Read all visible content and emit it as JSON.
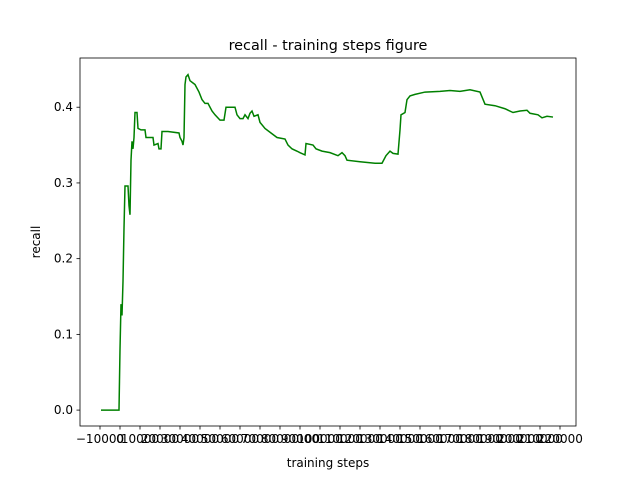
{
  "chart_data": {
    "type": "line",
    "title": "recall - training steps figure",
    "xlabel": "training steps",
    "ylabel": "recall",
    "xlim": [
      -20000,
      228000
    ],
    "ylim": [
      -0.021,
      0.465
    ],
    "xticks": [
      {
        "value": -10000,
        "label": "−10000"
      },
      0,
      10000,
      20000,
      30000,
      40000,
      50000,
      60000,
      70000,
      80000,
      90000,
      100000,
      110000,
      120000,
      130000,
      140000,
      150000,
      160000,
      170000,
      180000,
      190000,
      200000,
      210000,
      220000
    ],
    "yticks": [
      {
        "value": 0,
        "label": "0.0"
      },
      0.1,
      0.2,
      0.3,
      0.4
    ],
    "series": [
      {
        "color": "#008000",
        "x": [
          -9500,
          -500,
          0,
          500,
          1000,
          1500,
          2000,
          2500,
          4000,
          4500,
          5000,
          5500,
          6000,
          6500,
          7000,
          7500,
          8500,
          9000,
          10500,
          12500,
          13000,
          16500,
          17000,
          19000,
          19500,
          20500,
          21000,
          24000,
          29500,
          30000,
          31000,
          31500,
          32000,
          32500,
          33000,
          34000,
          35000,
          36500,
          37500,
          39500,
          41000,
          42500,
          44000,
          46000,
          47500,
          50000,
          52000,
          53000,
          57500,
          58500,
          60000,
          61500,
          62500,
          64000,
          65000,
          66000,
          67000,
          69000,
          70000,
          72500,
          76000,
          78500,
          82500,
          84000,
          86000,
          88500,
          90000,
          92500,
          93000,
          96500,
          98000,
          101000,
          105000,
          109000,
          111000,
          112500,
          113500,
          120000,
          127500,
          131000,
          133000,
          135000,
          136500,
          139000,
          140000,
          140500,
          142500,
          143500,
          145000,
          147500,
          152500,
          160000,
          165000,
          170000,
          175000,
          180000,
          182500,
          187500,
          192500,
          196500,
          200000,
          203500,
          205000,
          209000,
          211000,
          213500,
          216500
        ],
        "values": [
          0,
          0,
          0.08,
          0.14,
          0.125,
          0.17,
          0.24,
          0.296,
          0.296,
          0.27,
          0.258,
          0.33,
          0.355,
          0.345,
          0.36,
          0.393,
          0.393,
          0.372,
          0.37,
          0.37,
          0.36,
          0.36,
          0.35,
          0.352,
          0.345,
          0.345,
          0.368,
          0.368,
          0.366,
          0.36,
          0.355,
          0.35,
          0.36,
          0.43,
          0.44,
          0.443,
          0.435,
          0.432,
          0.43,
          0.42,
          0.41,
          0.405,
          0.405,
          0.395,
          0.39,
          0.383,
          0.383,
          0.4,
          0.4,
          0.39,
          0.385,
          0.385,
          0.39,
          0.385,
          0.392,
          0.395,
          0.388,
          0.39,
          0.38,
          0.372,
          0.365,
          0.36,
          0.358,
          0.35,
          0.345,
          0.342,
          0.34,
          0.337,
          0.352,
          0.35,
          0.345,
          0.342,
          0.34,
          0.336,
          0.34,
          0.336,
          0.33,
          0.328,
          0.326,
          0.326,
          0.336,
          0.342,
          0.339,
          0.338,
          0.37,
          0.39,
          0.393,
          0.41,
          0.415,
          0.417,
          0.42,
          0.421,
          0.422,
          0.421,
          0.423,
          0.42,
          0.404,
          0.402,
          0.398,
          0.393,
          0.395,
          0.396,
          0.392,
          0.39,
          0.386,
          0.388,
          0.387
        ]
      }
    ]
  }
}
